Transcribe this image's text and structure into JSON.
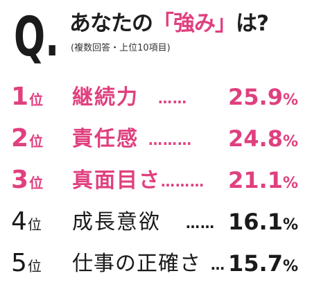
{
  "header": {
    "q_mark": "Q.",
    "question_prefix": "あなたの",
    "question_highlight": "「強み」",
    "question_suffix": "は?",
    "note": "(複数回答・上位10項目)"
  },
  "rankings": [
    {
      "rank": "1",
      "suffix": "位",
      "label": "継続力",
      "dots": "……",
      "value": "25.9",
      "unit": "%",
      "color": "#e0407f"
    },
    {
      "rank": "2",
      "suffix": "位",
      "label": "責任感",
      "dots": "………",
      "value": "24.8",
      "unit": "%",
      "color": "#e0407f"
    },
    {
      "rank": "3",
      "suffix": "位",
      "label": "真面目さ",
      "dots": "………",
      "value": "21.1",
      "unit": "%",
      "color": "#e0407f"
    },
    {
      "rank": "4",
      "suffix": "位",
      "label": "成長意欲",
      "dots": "……",
      "value": "16.1",
      "unit": "%",
      "color": "#1a1a1a"
    },
    {
      "rank": "5",
      "suffix": "位",
      "label": "仕事の正確さ",
      "dots": "…",
      "value": "15.7",
      "unit": "%",
      "color": "#1a1a1a"
    }
  ]
}
